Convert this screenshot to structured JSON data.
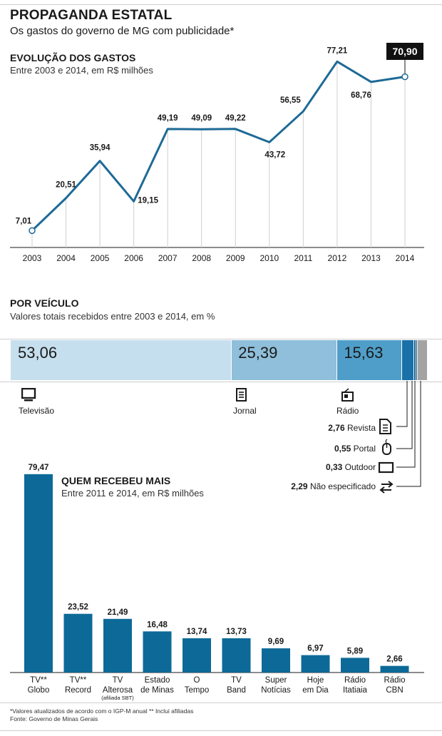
{
  "header": {
    "title": "PROPAGANDA ESTATAL",
    "subtitle": "Os gastos do governo de MG com publicidade*"
  },
  "line_section": {
    "title": "EVOLUÇÃO DOS GASTOS",
    "subtitle": "Entre 2003 e 2014, em R$ milhões"
  },
  "vehicle_section": {
    "title": "POR VEÍCULO",
    "subtitle": "Valores totais recebidos entre 2003 e 2014, em %",
    "segments": [
      {
        "label": "Televisão",
        "value": 53.06,
        "display": "53,06",
        "color": "#c6dfee",
        "icon": "tv-icon"
      },
      {
        "label": "Jornal",
        "value": 25.39,
        "display": "25,39",
        "color": "#8fbfda",
        "icon": "newspaper-icon"
      },
      {
        "label": "Rádio",
        "value": 15.63,
        "display": "15,63",
        "color": "#4f9ec9",
        "icon": "radio-icon"
      },
      {
        "label": "Revista",
        "value": 2.76,
        "display": "2,76",
        "color": "#1a70a8",
        "icon": "magazine-icon"
      },
      {
        "label": "Portal",
        "value": 0.55,
        "display": "0,55",
        "color": "#0d5a8a",
        "icon": "mouse-icon"
      },
      {
        "label": "Outdoor",
        "value": 0.33,
        "display": "0,33",
        "color": "#08466e",
        "icon": "billboard-icon"
      },
      {
        "label": "Não especificado",
        "value": 2.29,
        "display": "2,29",
        "color": "#a3a3a3",
        "icon": "arrows-icon"
      }
    ]
  },
  "bar_section": {
    "title": "QUEM RECEBEU MAIS",
    "subtitle": "Entre 2011 e 2014, em R$ milhões"
  },
  "footnotes": {
    "line1": "*Valores atualizados de acordo com o IGP-M anual    ** Inclui afiliadas",
    "line2": "Fonte: Governo de Minas Gerais"
  },
  "chart_data": [
    {
      "type": "line",
      "title": "EVOLUÇÃO DOS GASTOS",
      "subtitle": "Entre 2003 e 2014, em R$ milhões",
      "x": [
        "2003",
        "2004",
        "2005",
        "2006",
        "2007",
        "2008",
        "2009",
        "2010",
        "2011",
        "2012",
        "2013",
        "2014"
      ],
      "values": [
        7.01,
        20.51,
        35.94,
        19.15,
        49.19,
        49.09,
        49.22,
        43.72,
        56.55,
        77.21,
        68.76,
        70.9
      ],
      "labels": [
        "7,01",
        "20,51",
        "35,94",
        "19,15",
        "49,19",
        "49,09",
        "49,22",
        "43,72",
        "56,55",
        "77,21",
        "68,76",
        "70,90"
      ],
      "ylim": [
        0,
        85
      ],
      "line_color": "#1d6a96",
      "highlight_last": true
    },
    {
      "type": "bar",
      "title": "QUEM RECEBEU MAIS",
      "subtitle": "Entre 2011 e 2014, em R$ milhões",
      "categories": [
        {
          "line1": "TV**",
          "line2": "Globo"
        },
        {
          "line1": "TV**",
          "line2": "Record"
        },
        {
          "line1": "TV",
          "line2": "Alterosa",
          "line3": "(afiliada SBT)"
        },
        {
          "line1": "Estado",
          "line2": "de Minas"
        },
        {
          "line1": "O",
          "line2": "Tempo"
        },
        {
          "line1": "TV",
          "line2": "Band"
        },
        {
          "line1": "Super",
          "line2": "Notícias"
        },
        {
          "line1": "Hoje",
          "line2": "em Dia"
        },
        {
          "line1": "Rádio",
          "line2": "Itatiaia"
        },
        {
          "line1": "Rádio",
          "line2": "CBN"
        }
      ],
      "values": [
        79.47,
        23.52,
        21.49,
        16.48,
        13.74,
        13.73,
        9.69,
        6.97,
        5.89,
        2.66
      ],
      "labels": [
        "79,47",
        "23,52",
        "21,49",
        "16,48",
        "13,74",
        "13,73",
        "9,69",
        "6,97",
        "5,89",
        "2,66"
      ],
      "ylim": [
        0,
        80
      ],
      "bar_color": "#0d6a98"
    }
  ]
}
